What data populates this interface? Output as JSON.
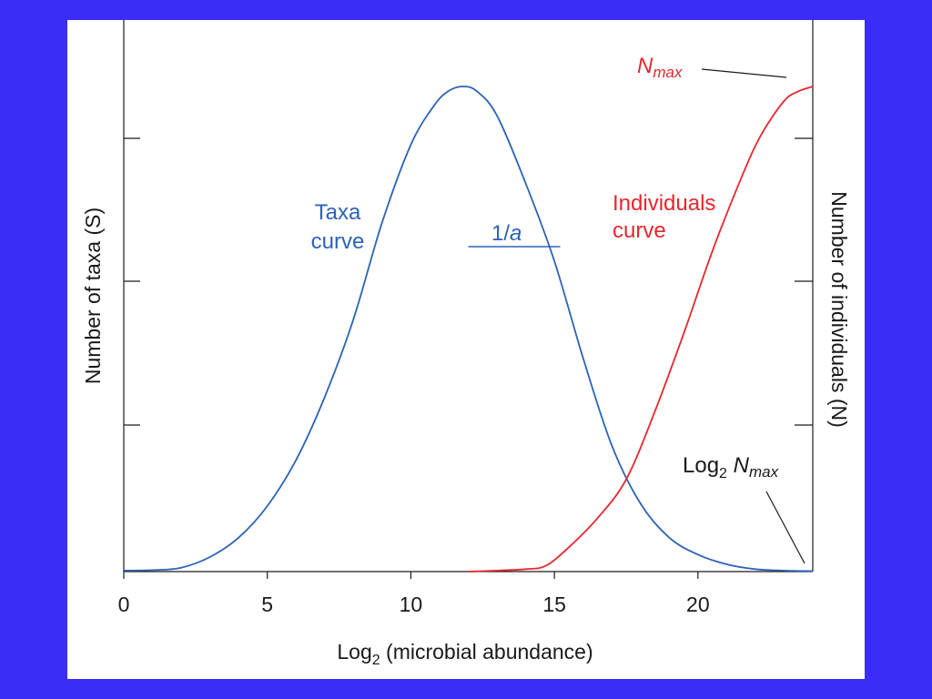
{
  "chart_data": {
    "type": "line",
    "xlabel": "Log",
    "xlabel_sub": "2",
    "xlabel_rest": " (microbial abundance)",
    "ylabel_left": "Number of taxa (S)",
    "ylabel_right": "Number of individuals (N)",
    "xlim": [
      0,
      24
    ],
    "ylim": [
      0,
      1
    ],
    "x_ticks": [
      0,
      5,
      10,
      15,
      20
    ],
    "y_ticks_fraction": [
      0.3,
      0.6,
      0.9
    ],
    "colors": {
      "taxa": "#2b63b5",
      "individuals": "#e8262d",
      "annotation": "#1a1a1a",
      "background": "#3b2df5"
    },
    "series": [
      {
        "key": "taxa",
        "label_line1": "Taxa",
        "label_line2": "curve",
        "color": "#2b63b5",
        "x": [
          0,
          1,
          2,
          3,
          4,
          5,
          6,
          7,
          8,
          9,
          10,
          10.8,
          11.3,
          11.8,
          12.3,
          13,
          14,
          15,
          16,
          17,
          18,
          19,
          20,
          21,
          22,
          23,
          24
        ],
        "y": [
          0.002,
          0.003,
          0.008,
          0.03,
          0.07,
          0.135,
          0.23,
          0.36,
          0.52,
          0.72,
          0.88,
          0.96,
          0.99,
          1.0,
          0.99,
          0.94,
          0.8,
          0.64,
          0.44,
          0.26,
          0.14,
          0.07,
          0.035,
          0.015,
          0.005,
          0.002,
          0.001
        ]
      },
      {
        "key": "individuals",
        "label_line1": "Individuals",
        "label_line2": "curve",
        "color": "#e8262d",
        "x": [
          12,
          13,
          14,
          14.7,
          15.5,
          16.5,
          17.5,
          18.5,
          19.5,
          20.5,
          21.5,
          22.2,
          23,
          23.5,
          24
        ],
        "y": [
          0.0,
          0.002,
          0.005,
          0.012,
          0.05,
          0.11,
          0.19,
          0.33,
          0.49,
          0.66,
          0.81,
          0.9,
          0.97,
          0.99,
          1.0
        ]
      }
    ],
    "annotations": {
      "width_marker": {
        "text_prefix": "1/",
        "text_italic": "a",
        "x_start": 12,
        "x_end": 15.2,
        "y": 0.67
      },
      "nmax": {
        "text_main": "N",
        "text_sub": "max"
      },
      "log2_nmax": {
        "text_main": "Log",
        "text_sub": "2",
        "text_n": "N",
        "text_n_sub": "max"
      }
    }
  }
}
